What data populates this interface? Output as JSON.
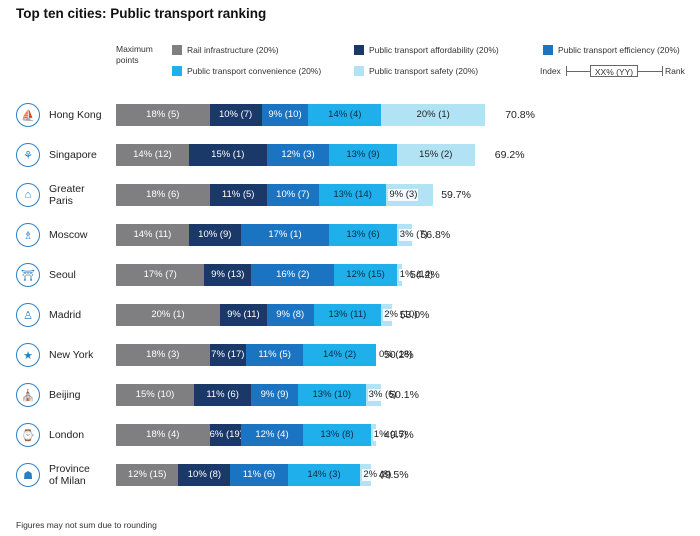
{
  "title": "Top ten cities: Public transport ranking",
  "max_points_label": "Maximum points",
  "legend": [
    {
      "name": "Rail infrastructure (20%)",
      "color": "#7f7f81"
    },
    {
      "name": "Public transport affordability (20%)",
      "color": "#1a3868"
    },
    {
      "name": "Public transport efficiency (20%)",
      "color": "#1b74c2"
    },
    {
      "name": "Public transport convenience (20%)",
      "color": "#1fb0ec"
    },
    {
      "name": "Public transport safety (20%)",
      "color": "#b2e3f5"
    }
  ],
  "index_key": {
    "index_label": "Index",
    "box_label": "XX% (YY)",
    "rank_label": "Rank"
  },
  "footnote": "Figures may not sum due to rounding",
  "chart_data": {
    "type": "bar",
    "orientation": "horizontal",
    "stacked": true,
    "categories": [
      "Hong Kong",
      "Singapore",
      "Greater Paris",
      "Moscow",
      "Seoul",
      "Madrid",
      "New York",
      "Beijing",
      "London",
      "Province of Milan"
    ],
    "series": [
      {
        "name": "Rail infrastructure (20%)",
        "color": "#7f7f81",
        "values": [
          18,
          14,
          18,
          14,
          17,
          20,
          18,
          15,
          18,
          12
        ],
        "ranks": [
          5,
          12,
          6,
          11,
          7,
          1,
          3,
          10,
          4,
          15
        ]
      },
      {
        "name": "Public transport affordability (20%)",
        "color": "#1a3868",
        "values": [
          10,
          15,
          11,
          10,
          9,
          9,
          7,
          11,
          6,
          10
        ],
        "ranks": [
          7,
          1,
          5,
          9,
          13,
          11,
          17,
          6,
          19,
          8
        ]
      },
      {
        "name": "Public transport efficiency (20%)",
        "color": "#1b74c2",
        "values": [
          9,
          12,
          10,
          17,
          16,
          9,
          11,
          9,
          12,
          11
        ],
        "ranks": [
          10,
          3,
          7,
          1,
          2,
          8,
          5,
          9,
          4,
          6
        ]
      },
      {
        "name": "Public transport convenience (20%)",
        "color": "#1fb0ec",
        "values": [
          14,
          13,
          13,
          13,
          12,
          13,
          14,
          13,
          13,
          14
        ],
        "ranks": [
          4,
          9,
          14,
          6,
          15,
          11,
          2,
          10,
          8,
          3
        ]
      },
      {
        "name": "Public transport safety (20%)",
        "color": "#b2e3f5",
        "values": [
          20,
          15,
          9,
          3,
          1,
          2,
          0,
          3,
          1,
          2
        ],
        "ranks": [
          1,
          2,
          3,
          7,
          14,
          10,
          18,
          6,
          15,
          8
        ]
      }
    ],
    "totals": [
      "70.8%",
      "69.2%",
      "59.7%",
      "56.8%",
      "54.2%",
      "53.0%",
      "50.2%",
      "50.1%",
      "49.7%",
      "49.5%"
    ],
    "icons": [
      "junk-boat-icon",
      "merlion-icon",
      "eiffel-tower-icon",
      "kremlin-tower-icon",
      "gate-icon",
      "statue-icon",
      "statue-of-liberty-icon",
      "temple-icon",
      "big-ben-icon",
      "cathedral-icon"
    ],
    "xlim": [
      0,
      100
    ]
  }
}
